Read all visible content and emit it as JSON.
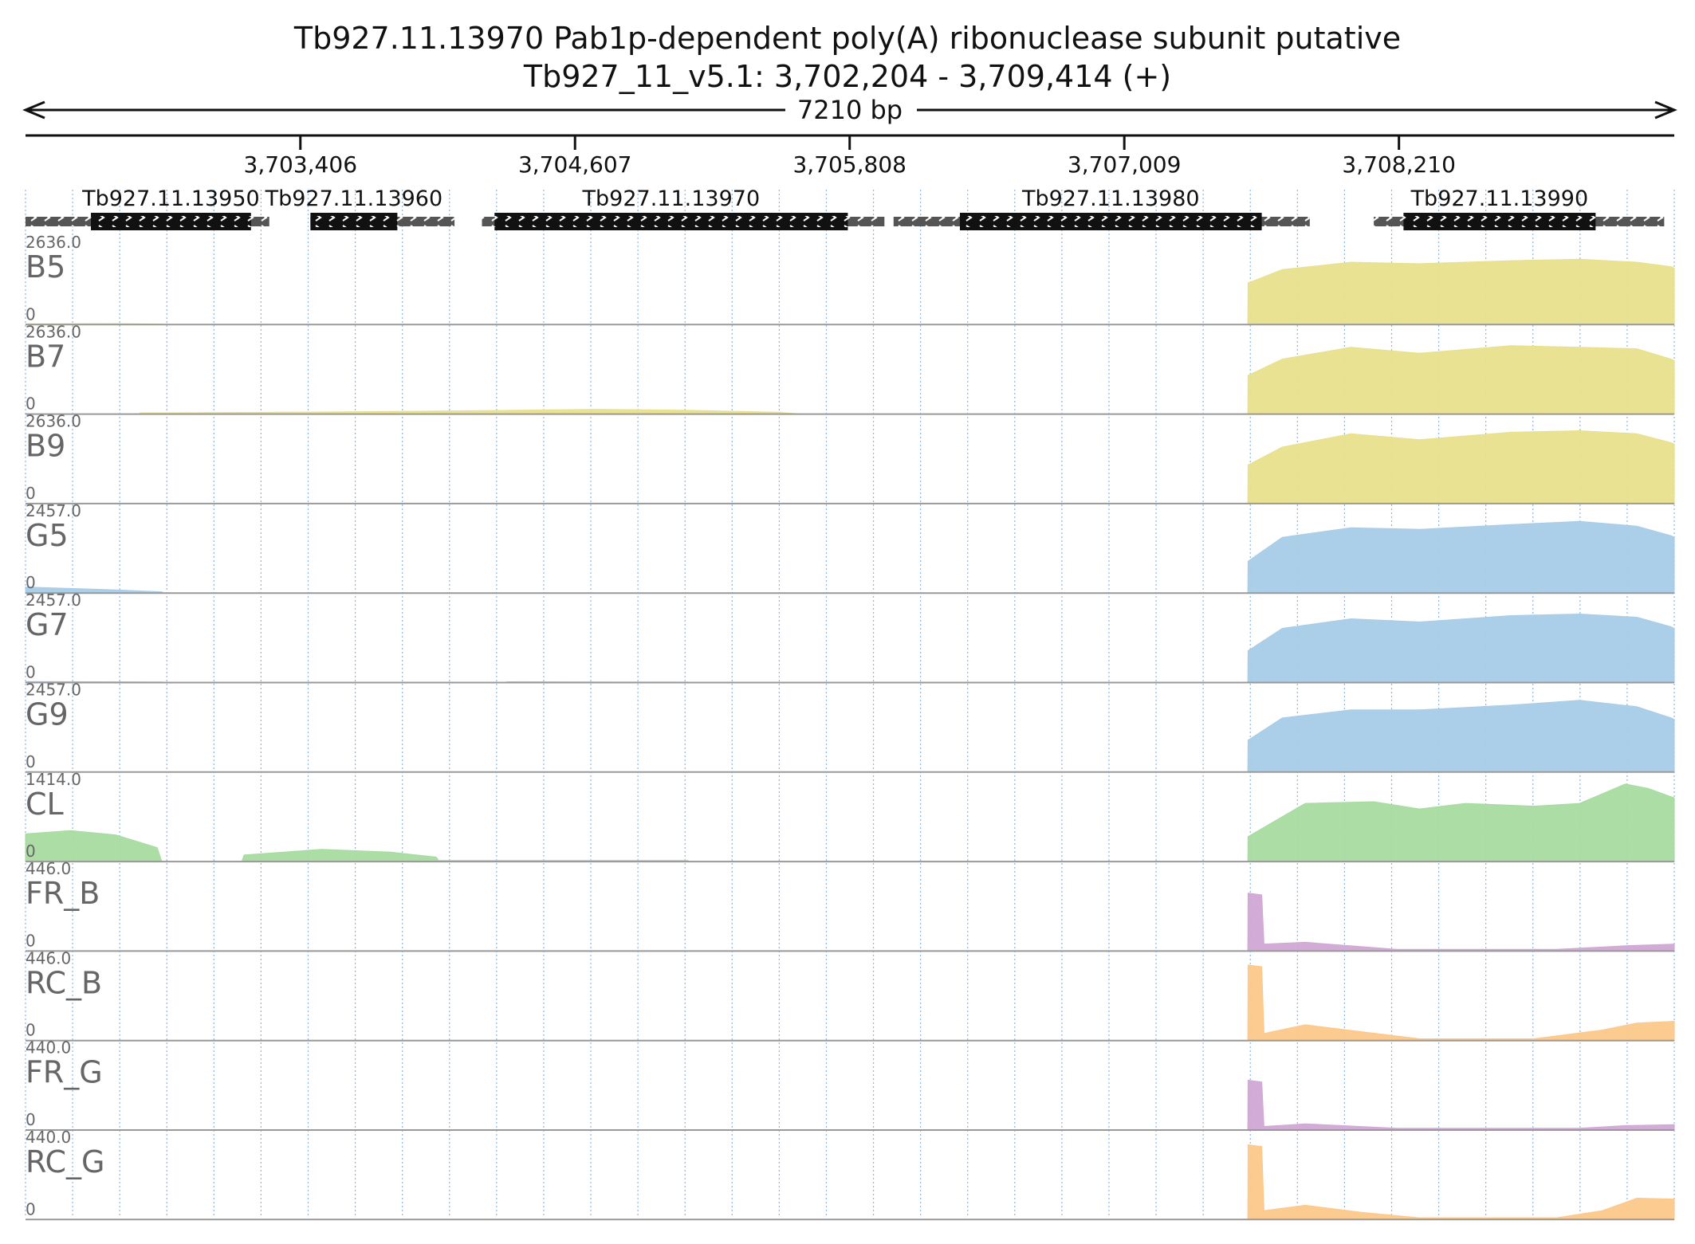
{
  "header": {
    "title": "Tb927.11.13970  Pab1p-dependent poly(A) ribonuclease subunit  putative",
    "subtitle": "Tb927_11_v5.1: 3,702,204 - 3,709,414 (+)",
    "span_label": "7210 bp"
  },
  "chart_data": {
    "type": "area",
    "title": "Tb927.11.13970  Pab1p-dependent poly(A) ribonuclease subunit  putative",
    "subtitle": "Tb927_11_v5.1: 3,702,204 - 3,709,414 (+)",
    "xlim": [
      3702204,
      3709414
    ],
    "grid": true,
    "x_ticks": [
      3703406,
      3704607,
      3705808,
      3707009,
      3708210
    ],
    "x_tick_labels": [
      "3,703,406",
      "3,704,607",
      "3,705,808",
      "3,707,009",
      "3,708,210"
    ],
    "genes": [
      {
        "name": "Tb927.11.13950",
        "start": 3702204,
        "end": 3703270,
        "cds_start": 3702490,
        "cds_end": 3703190,
        "strand": "+"
      },
      {
        "name": "Tb927.11.13960",
        "start": 3703450,
        "end": 3704080,
        "cds_start": 3703450,
        "cds_end": 3703830,
        "strand": "+"
      },
      {
        "name": "Tb927.11.13970",
        "start": 3704200,
        "end": 3705960,
        "cds_start": 3704255,
        "cds_end": 3705800,
        "strand": "+"
      },
      {
        "name": "Tb927.11.13980",
        "start": 3706000,
        "end": 3707820,
        "cds_start": 3706290,
        "cds_end": 3707610,
        "strand": "+"
      },
      {
        "name": "Tb927.11.13990",
        "start": 3708100,
        "end": 3709370,
        "cds_start": 3708230,
        "cds_end": 3709070,
        "strand": "+"
      }
    ],
    "tracks": [
      {
        "name": "B5",
        "max": "2636.0",
        "min": "0",
        "color": "#e8e08c",
        "points": [
          [
            3702204,
            25
          ],
          [
            3702600,
            35
          ],
          [
            3702800,
            20
          ],
          [
            3702805,
            0
          ],
          [
            3704000,
            0
          ],
          [
            3704010,
            8
          ],
          [
            3704200,
            8
          ],
          [
            3704210,
            0
          ],
          [
            3707549,
            0
          ],
          [
            3707550,
            1400
          ],
          [
            3707700,
            1850
          ],
          [
            3708000,
            2100
          ],
          [
            3708300,
            2050
          ],
          [
            3708700,
            2150
          ],
          [
            3709000,
            2200
          ],
          [
            3709250,
            2100
          ],
          [
            3709400,
            1950
          ],
          [
            3709414,
            1900
          ]
        ]
      },
      {
        "name": "B7",
        "max": "2636.0",
        "min": "0",
        "color": "#e8e08c",
        "points": [
          [
            3702204,
            0
          ],
          [
            3702700,
            0
          ],
          [
            3702705,
            40
          ],
          [
            3703500,
            70
          ],
          [
            3704100,
            110
          ],
          [
            3704700,
            160
          ],
          [
            3705100,
            130
          ],
          [
            3705500,
            60
          ],
          [
            3705600,
            0
          ],
          [
            3707549,
            0
          ],
          [
            3707550,
            1300
          ],
          [
            3707700,
            1850
          ],
          [
            3708000,
            2250
          ],
          [
            3708300,
            2050
          ],
          [
            3708700,
            2300
          ],
          [
            3709000,
            2250
          ],
          [
            3709250,
            2200
          ],
          [
            3709400,
            1850
          ],
          [
            3709414,
            1800
          ]
        ]
      },
      {
        "name": "B9",
        "max": "2636.0",
        "min": "0",
        "color": "#e8e08c",
        "points": [
          [
            3702204,
            0
          ],
          [
            3707549,
            0
          ],
          [
            3707550,
            1300
          ],
          [
            3707700,
            1900
          ],
          [
            3708000,
            2350
          ],
          [
            3708300,
            2150
          ],
          [
            3708700,
            2400
          ],
          [
            3709000,
            2450
          ],
          [
            3709250,
            2350
          ],
          [
            3709400,
            2050
          ],
          [
            3709414,
            2000
          ]
        ]
      },
      {
        "name": "G5",
        "max": "2457.0",
        "min": "0",
        "color": "#a8cce8",
        "points": [
          [
            3702204,
            190
          ],
          [
            3702600,
            100
          ],
          [
            3702800,
            40
          ],
          [
            3702810,
            0
          ],
          [
            3707549,
            0
          ],
          [
            3707550,
            1000
          ],
          [
            3707700,
            1750
          ],
          [
            3708000,
            2050
          ],
          [
            3708300,
            2000
          ],
          [
            3708700,
            2150
          ],
          [
            3709000,
            2250
          ],
          [
            3709250,
            2100
          ],
          [
            3709400,
            1800
          ],
          [
            3709414,
            1750
          ]
        ]
      },
      {
        "name": "G7",
        "max": "2457.0",
        "min": "0",
        "color": "#a8cce8",
        "points": [
          [
            3702204,
            0
          ],
          [
            3702205,
            30
          ],
          [
            3702800,
            20
          ],
          [
            3702810,
            0
          ],
          [
            3704300,
            0
          ],
          [
            3704310,
            25
          ],
          [
            3705100,
            15
          ],
          [
            3705110,
            0
          ],
          [
            3707549,
            0
          ],
          [
            3707550,
            1000
          ],
          [
            3707700,
            1700
          ],
          [
            3708000,
            2000
          ],
          [
            3708300,
            1900
          ],
          [
            3708700,
            2100
          ],
          [
            3709000,
            2150
          ],
          [
            3709250,
            2050
          ],
          [
            3709400,
            1750
          ],
          [
            3709414,
            1700
          ]
        ]
      },
      {
        "name": "G9",
        "max": "2457.0",
        "min": "0",
        "color": "#a8cce8",
        "points": [
          [
            3702204,
            0
          ],
          [
            3707549,
            0
          ],
          [
            3707550,
            1000
          ],
          [
            3707700,
            1700
          ],
          [
            3708000,
            1950
          ],
          [
            3708300,
            1950
          ],
          [
            3708700,
            2100
          ],
          [
            3709000,
            2250
          ],
          [
            3709250,
            2050
          ],
          [
            3709400,
            1700
          ],
          [
            3709414,
            1650
          ]
        ]
      },
      {
        "name": "CL",
        "max": "1414.0",
        "min": "0",
        "color": "#a6dba0",
        "points": [
          [
            3702204,
            500
          ],
          [
            3702400,
            560
          ],
          [
            3702600,
            480
          ],
          [
            3702780,
            250
          ],
          [
            3702800,
            0
          ],
          [
            3703150,
            0
          ],
          [
            3703160,
            120
          ],
          [
            3703500,
            220
          ],
          [
            3703800,
            170
          ],
          [
            3704000,
            80
          ],
          [
            3704010,
            20
          ],
          [
            3705100,
            20
          ],
          [
            3705110,
            0
          ],
          [
            3707549,
            0
          ],
          [
            3707550,
            450
          ],
          [
            3707800,
            1050
          ],
          [
            3708100,
            1080
          ],
          [
            3708300,
            950
          ],
          [
            3708500,
            1050
          ],
          [
            3708800,
            1000
          ],
          [
            3709000,
            1050
          ],
          [
            3709200,
            1400
          ],
          [
            3709300,
            1320
          ],
          [
            3709414,
            1150
          ]
        ]
      },
      {
        "name": "FR_B",
        "max": "446.0",
        "min": "0",
        "color": "#d0a8d4",
        "points": [
          [
            3702204,
            0
          ],
          [
            3707549,
            0
          ],
          [
            3707550,
            330
          ],
          [
            3707610,
            320
          ],
          [
            3707620,
            40
          ],
          [
            3707800,
            50
          ],
          [
            3708200,
            10
          ],
          [
            3708900,
            10
          ],
          [
            3709200,
            30
          ],
          [
            3709414,
            40
          ]
        ]
      },
      {
        "name": "RC_B",
        "max": "446.0",
        "min": "0",
        "color": "#fcc88a",
        "points": [
          [
            3702204,
            0
          ],
          [
            3707549,
            0
          ],
          [
            3707550,
            430
          ],
          [
            3707610,
            420
          ],
          [
            3707620,
            40
          ],
          [
            3707800,
            90
          ],
          [
            3708050,
            50
          ],
          [
            3708300,
            10
          ],
          [
            3708800,
            10
          ],
          [
            3709100,
            60
          ],
          [
            3709250,
            100
          ],
          [
            3709414,
            110
          ]
        ]
      },
      {
        "name": "FR_G",
        "max": "440.0",
        "min": "0",
        "color": "#d0a8d4",
        "points": [
          [
            3702204,
            0
          ],
          [
            3707549,
            0
          ],
          [
            3707550,
            280
          ],
          [
            3707610,
            270
          ],
          [
            3707620,
            20
          ],
          [
            3707800,
            35
          ],
          [
            3708200,
            10
          ],
          [
            3709000,
            10
          ],
          [
            3709200,
            25
          ],
          [
            3709414,
            30
          ]
        ]
      },
      {
        "name": "RC_G",
        "max": "440.0",
        "min": "0",
        "color": "#fcc88a",
        "points": [
          [
            3702204,
            0
          ],
          [
            3707549,
            0
          ],
          [
            3707550,
            420
          ],
          [
            3707610,
            410
          ],
          [
            3707620,
            50
          ],
          [
            3707800,
            80
          ],
          [
            3708050,
            40
          ],
          [
            3708300,
            10
          ],
          [
            3708900,
            10
          ],
          [
            3709100,
            50
          ],
          [
            3709250,
            120
          ],
          [
            3709414,
            115
          ]
        ]
      }
    ]
  }
}
